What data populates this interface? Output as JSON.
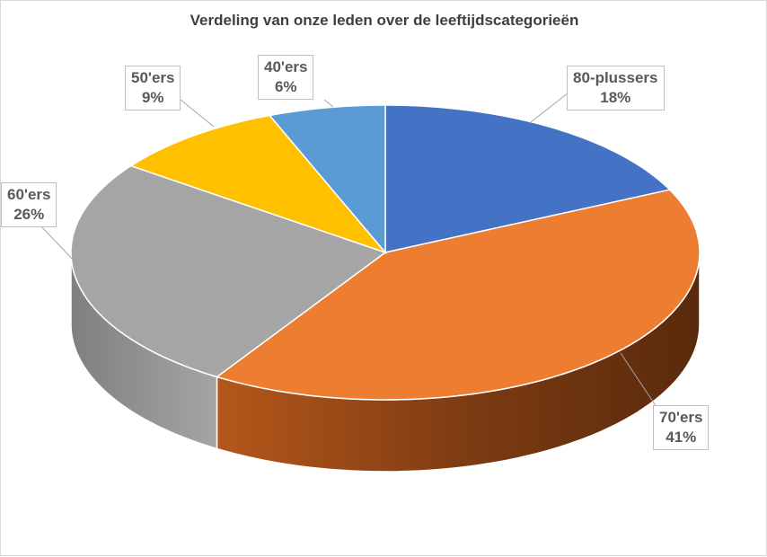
{
  "chart_data": {
    "type": "pie",
    "title": "Verdeling van onze leden over de leeftijdscategorieën",
    "legend": "none",
    "slices": [
      {
        "name": "80-plussers",
        "label": "80-plussers",
        "pct_label": "18%",
        "value": 18,
        "color": "#4472C4",
        "side_color": "#2F528F"
      },
      {
        "name": "70'ers",
        "label": "70'ers",
        "pct_label": "41%",
        "value": 41,
        "color": "#ED7D31",
        "side_color": "#843C0C"
      },
      {
        "name": "60'ers",
        "label": "60'ers",
        "pct_label": "26%",
        "value": 26,
        "color": "#A5A5A5",
        "side_color": "#7B7B7B"
      },
      {
        "name": "50'ers",
        "label": "50'ers",
        "pct_label": "9%",
        "value": 9,
        "color": "#FFC000",
        "side_color": "#BF9000"
      },
      {
        "name": "40'ers",
        "label": "40'ers",
        "pct_label": "6%",
        "value": 6,
        "color": "#5B9BD5",
        "side_color": "#2E75B6"
      }
    ]
  }
}
